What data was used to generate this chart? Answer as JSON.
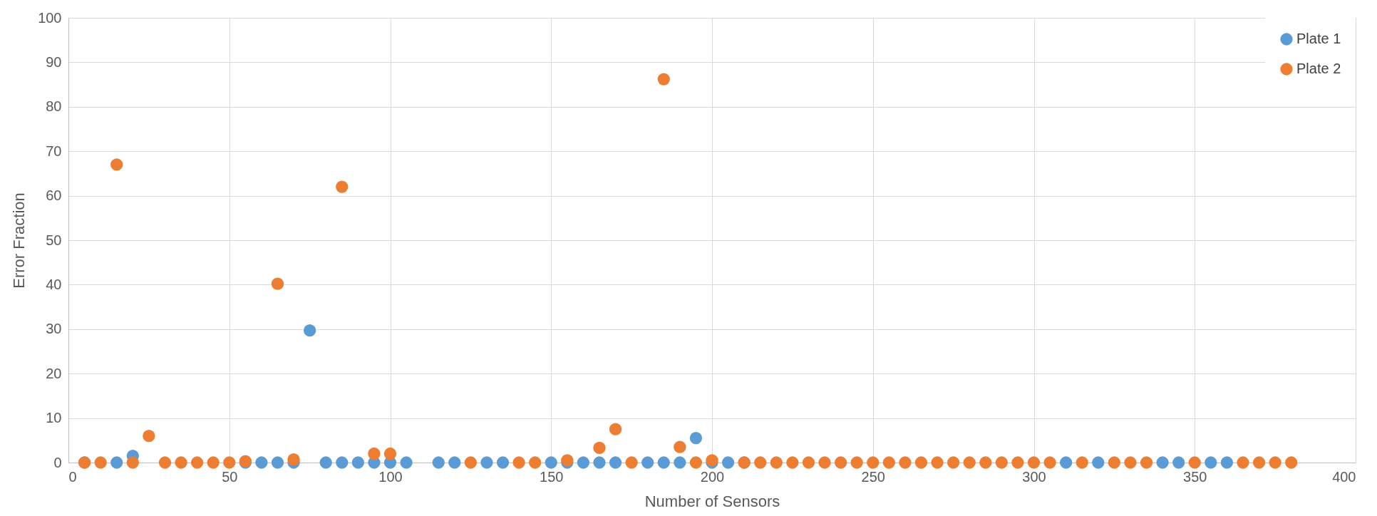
{
  "chart_data": {
    "type": "scatter",
    "xlabel": "Number of Sensors",
    "ylabel": "Error Fraction",
    "x": [
      5,
      10,
      15,
      20,
      25,
      30,
      35,
      40,
      45,
      50,
      55,
      60,
      65,
      70,
      75,
      80,
      85,
      90,
      95,
      100,
      105,
      110,
      115,
      120,
      125,
      130,
      135,
      140,
      145,
      150,
      155,
      160,
      165,
      170,
      175,
      180,
      185,
      190,
      195,
      200,
      205,
      210,
      215,
      220,
      225,
      230,
      235,
      240,
      245,
      250,
      255,
      260,
      265,
      270,
      275,
      280,
      285,
      290,
      295,
      300,
      305,
      310,
      315,
      320,
      325,
      330,
      335,
      340,
      345,
      350,
      355,
      360,
      365,
      370,
      375,
      380
    ],
    "series": [
      {
        "name": "Plate 1",
        "color": "#5b9bd5",
        "values": [
          0,
          null,
          0,
          1.5,
          null,
          null,
          null,
          null,
          null,
          null,
          0,
          0,
          0,
          0,
          29.7,
          0,
          0,
          0,
          0,
          0,
          0,
          null,
          0,
          0,
          null,
          0,
          0,
          null,
          null,
          0,
          0,
          0,
          0,
          0,
          null,
          0,
          0,
          0,
          5.5,
          0,
          0,
          0,
          null,
          null,
          null,
          null,
          null,
          null,
          null,
          null,
          null,
          null,
          null,
          null,
          null,
          null,
          null,
          null,
          null,
          null,
          null,
          0,
          null,
          0,
          null,
          null,
          null,
          0,
          0,
          null,
          0,
          0,
          null,
          null,
          null,
          null
        ]
      },
      {
        "name": "Plate 2",
        "color": "#ed7d31",
        "values": [
          0,
          0,
          67,
          0,
          6,
          0,
          0,
          0,
          0,
          0,
          0.3,
          null,
          40.2,
          0.7,
          null,
          null,
          62,
          null,
          2,
          2,
          null,
          null,
          null,
          null,
          0,
          null,
          null,
          0,
          0,
          null,
          0.5,
          null,
          3.3,
          7.5,
          0,
          null,
          86.2,
          3.5,
          0,
          0.5,
          null,
          0,
          0,
          0,
          0,
          0,
          0,
          0,
          0,
          0,
          0,
          0,
          0,
          0,
          0,
          0,
          0,
          0,
          0,
          0,
          0,
          null,
          0,
          null,
          0,
          0,
          0,
          null,
          null,
          0,
          null,
          null,
          0,
          0,
          0,
          0
        ]
      }
    ],
    "xlim": [
      0,
      400
    ],
    "xticks": [
      0,
      50,
      100,
      150,
      200,
      250,
      300,
      350,
      400
    ],
    "ylim": [
      0,
      100
    ],
    "yticks": [
      0,
      10,
      20,
      30,
      40,
      50,
      60,
      70,
      80,
      90,
      100
    ],
    "grid": true,
    "legend": "top right",
    "marker": "circle"
  }
}
